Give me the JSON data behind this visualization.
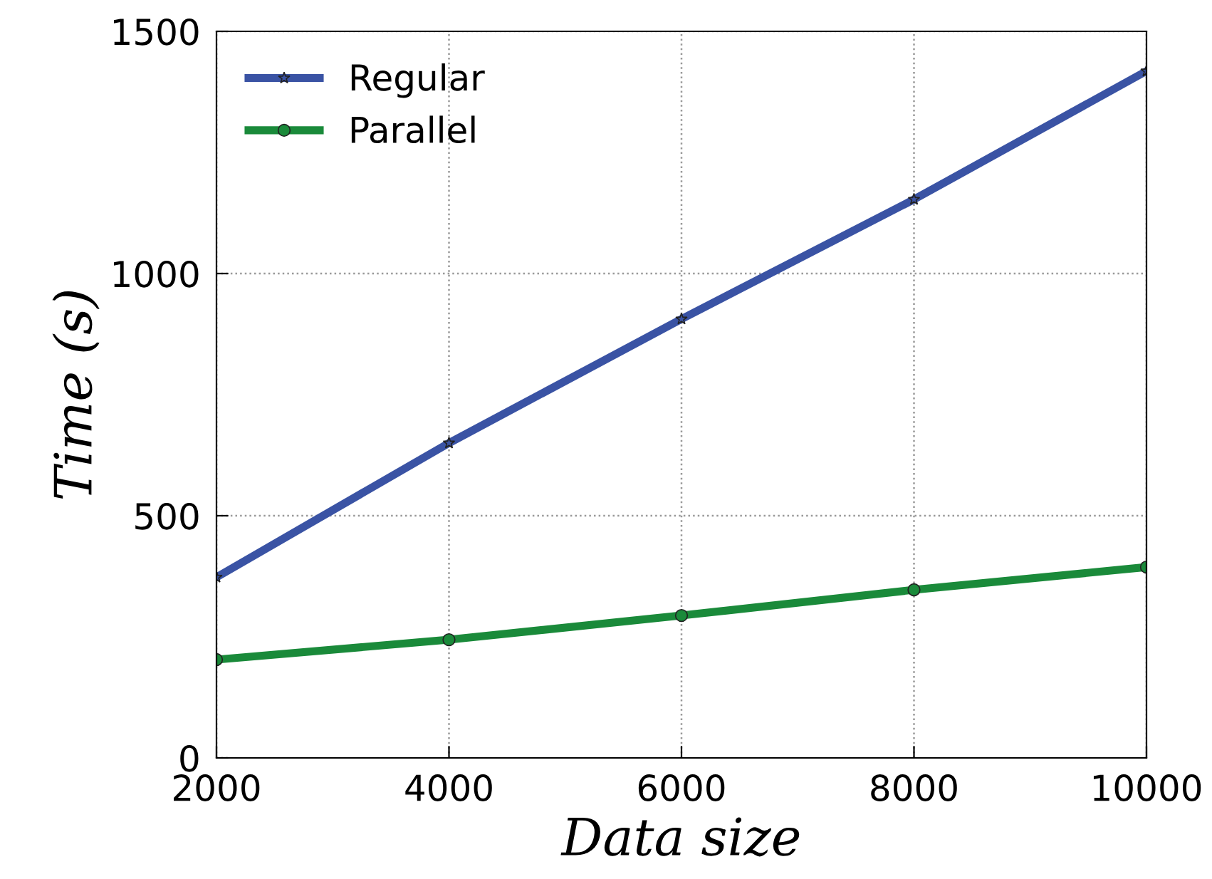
{
  "chart_data": {
    "type": "line",
    "xlabel": "Data size",
    "ylabel": "Time (s)",
    "x": [
      2000,
      4000,
      6000,
      8000,
      10000
    ],
    "series": [
      {
        "name": "Regular",
        "color": "#3a53a4",
        "marker": "star",
        "values": [
          373,
          650,
          906,
          1153,
          1418
        ]
      },
      {
        "name": "Parallel",
        "color": "#1a8a3a",
        "marker": "circle",
        "values": [
          203,
          244,
          294,
          347,
          394
        ]
      }
    ],
    "xlim": [
      2000,
      10000
    ],
    "xticks": [
      2000,
      4000,
      6000,
      8000,
      10000
    ],
    "ylim": [
      0,
      1500
    ],
    "yticks": [
      0,
      500,
      1000,
      1500
    ],
    "grid": true,
    "legend": "top left",
    "line_style": "solid"
  }
}
